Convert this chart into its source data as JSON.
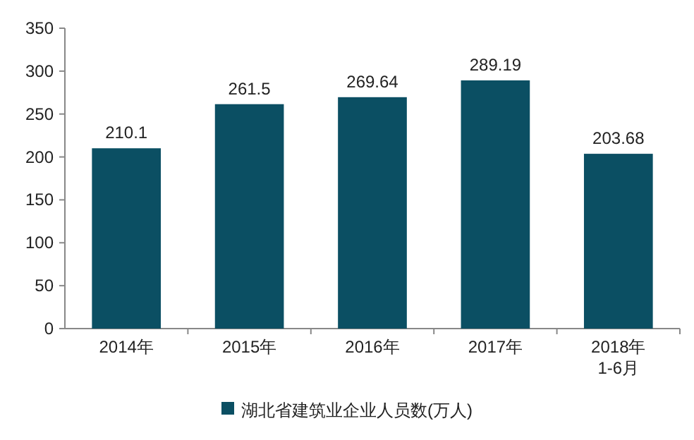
{
  "chart_data": {
    "type": "bar",
    "categories": [
      "2014年",
      "2015年",
      "2016年",
      "2017年",
      "2018年\n1-6月"
    ],
    "series": [
      {
        "name": "湖北省建筑业企业人员数(万人)",
        "color": "#0b4f63",
        "values": [
          210.1,
          261.5,
          269.64,
          289.19,
          203.68
        ]
      }
    ],
    "ylim": [
      0,
      350
    ],
    "yticks": [
      0,
      50,
      100,
      150,
      200,
      250,
      300,
      350
    ],
    "data_labels": true,
    "legend": "bottom"
  }
}
